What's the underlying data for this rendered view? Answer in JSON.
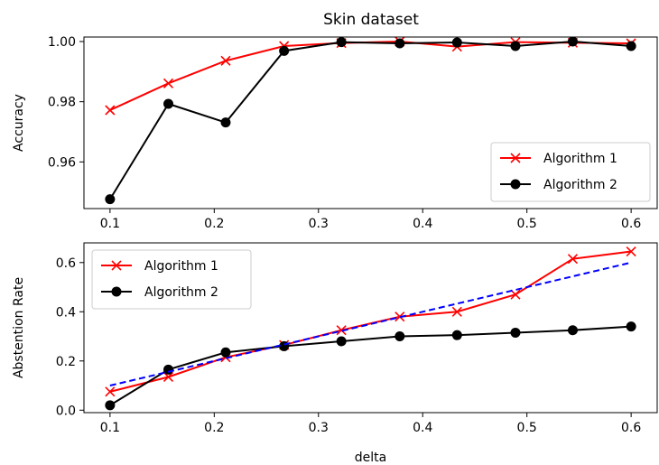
{
  "figure": {
    "title": "Skin dataset"
  },
  "chart_data": [
    {
      "type": "line",
      "title": "Skin dataset",
      "xlabel": "",
      "ylabel": "Accuracy",
      "xlim": [
        0.075,
        0.625
      ],
      "ylim": [
        0.9445,
        1.0015
      ],
      "xticks": [
        "0.1",
        "0.2",
        "0.3",
        "0.4",
        "0.5",
        "0.6"
      ],
      "yticks": [
        "0.96",
        "0.98",
        "1.00"
      ],
      "legend": "lower-right",
      "grid": false,
      "x": [
        0.1,
        0.156,
        0.211,
        0.267,
        0.322,
        0.378,
        0.433,
        0.489,
        0.544,
        0.6
      ],
      "series": [
        {
          "name": "Algorithm 1",
          "color": "#ff0000",
          "marker": "x",
          "dashed": false,
          "values": [
            0.9772,
            0.9861,
            0.9936,
            0.9985,
            0.9995,
            1.0,
            0.9983,
            0.9998,
            0.9996,
            0.9994
          ]
        },
        {
          "name": "Algorithm 2",
          "color": "#000000",
          "marker": "o",
          "dashed": false,
          "values": [
            0.9476,
            0.9793,
            0.9731,
            0.9969,
            0.9998,
            0.9994,
            0.9997,
            0.9985,
            1.0,
            0.9985
          ]
        }
      ]
    },
    {
      "type": "line",
      "title": "",
      "xlabel": "delta",
      "ylabel": "Abstention Rate",
      "xlim": [
        0.075,
        0.625
      ],
      "ylim": [
        -0.01,
        0.68
      ],
      "xticks": [
        "0.1",
        "0.2",
        "0.3",
        "0.4",
        "0.5",
        "0.6"
      ],
      "yticks": [
        "0.0",
        "0.2",
        "0.4",
        "0.6"
      ],
      "legend": "upper-left",
      "grid": false,
      "x": [
        0.1,
        0.156,
        0.211,
        0.267,
        0.322,
        0.378,
        0.433,
        0.489,
        0.544,
        0.6
      ],
      "series": [
        {
          "name": "Algorithm 1",
          "color": "#ff0000",
          "marker": "x",
          "dashed": false,
          "values": [
            0.075,
            0.135,
            0.215,
            0.265,
            0.325,
            0.38,
            0.4,
            0.47,
            0.615,
            0.645
          ]
        },
        {
          "name": "Algorithm 2",
          "color": "#000000",
          "marker": "o",
          "dashed": false,
          "values": [
            0.02,
            0.165,
            0.235,
            0.26,
            0.28,
            0.3,
            0.305,
            0.315,
            0.325,
            0.34
          ]
        },
        {
          "name": "",
          "color": "#0000ff",
          "marker": "none",
          "dashed": true,
          "x": [
            0.1,
            0.6
          ],
          "values": [
            0.1,
            0.6
          ]
        }
      ]
    }
  ]
}
